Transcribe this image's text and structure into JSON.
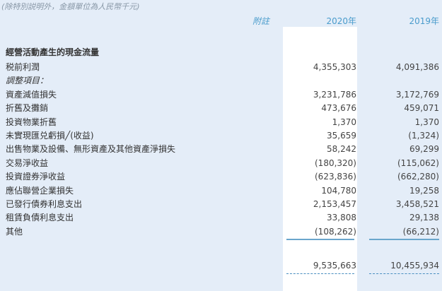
{
  "note": "(除特別説明外，金額單位為人民幣千元)",
  "headers": {
    "note": "附註",
    "y2020": "2020年",
    "y2019": "2019年"
  },
  "section_title": "經營活動產生的現金流量",
  "rows": [
    {
      "label": "税前利潤",
      "v2020": "4,355,303",
      "v2019": "4,091,386"
    },
    {
      "label": "調整項目：",
      "v2020": "",
      "v2019": ""
    },
    {
      "label": "資產減值損失",
      "v2020": "3,231,786",
      "v2019": "3,172,769"
    },
    {
      "label": "折舊及攤銷",
      "v2020": "473,676",
      "v2019": "459,071"
    },
    {
      "label": "投資物業折舊",
      "v2020": "1,370",
      "v2019": "1,370"
    },
    {
      "label": "未實現匯兑虧損╱(收益)",
      "v2020": "35,659",
      "v2019": "(1,324)"
    },
    {
      "label": "出售物業及設備、無形資產及其他資產淨損失",
      "v2020": "58,242",
      "v2019": "69,299"
    },
    {
      "label": "交易淨收益",
      "v2020": "(180,320)",
      "v2019": "(115,062)"
    },
    {
      "label": "投資證券淨收益",
      "v2020": "(623,836)",
      "v2019": "(662,280)"
    },
    {
      "label": "應佔聯營企業損失",
      "v2020": "104,780",
      "v2019": "19,258"
    },
    {
      "label": "已發行債券利息支出",
      "v2020": "2,153,457",
      "v2019": "3,458,521"
    },
    {
      "label": "租賃負債利息支出",
      "v2020": "33,808",
      "v2019": "29,138"
    },
    {
      "label": "其他",
      "v2020": "(108,262)",
      "v2019": "(66,212)"
    }
  ],
  "total": {
    "v2020": "9,535,663",
    "v2019": "10,455,934"
  }
}
